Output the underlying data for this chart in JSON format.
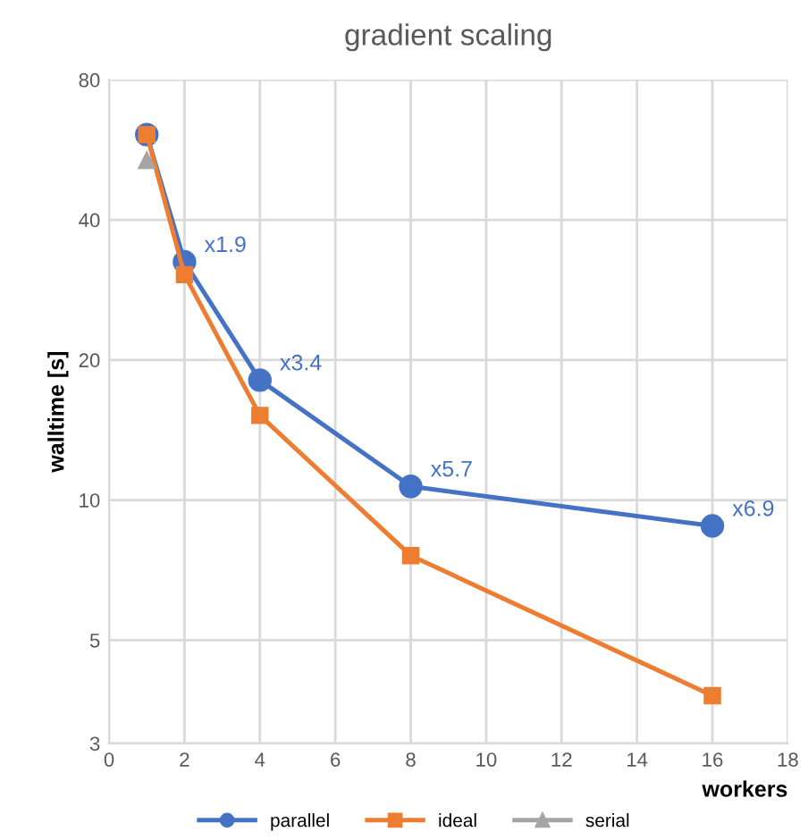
{
  "chart_data": {
    "type": "line",
    "title": "gradient scaling",
    "xlabel": "workers",
    "ylabel": "walltime [s]",
    "log": "y",
    "xlim": [
      0,
      18
    ],
    "xticks": [
      0,
      2,
      4,
      6,
      8,
      10,
      12,
      14,
      16,
      18
    ],
    "ylim": [
      3,
      80
    ],
    "yticks": [
      3,
      5,
      10,
      20,
      40,
      80
    ],
    "grid": true,
    "legend": "bottom",
    "line_style": "solid",
    "series": [
      {
        "name": "parallel",
        "color": "#4472c4",
        "marker": "circle",
        "x": [
          1,
          2,
          4,
          8,
          16
        ],
        "values": [
          61,
          32.5,
          18.1,
          10.7,
          8.8
        ]
      },
      {
        "name": "ideal",
        "color": "#ed7d31",
        "marker": "square",
        "x": [
          1,
          2,
          4,
          8,
          16
        ],
        "values": [
          61,
          30.5,
          15.2,
          7.6,
          3.8
        ]
      },
      {
        "name": "serial",
        "color": "#a5a5a5",
        "marker": "triangle",
        "x": [
          1
        ],
        "values": [
          53.7
        ]
      }
    ],
    "annotations": [
      {
        "text": "x1.9",
        "x": 2,
        "y": 32.5
      },
      {
        "text": "x3.4",
        "x": 4,
        "y": 18.1
      },
      {
        "text": "x5.7",
        "x": 8,
        "y": 10.7
      },
      {
        "text": "x6.9",
        "x": 16,
        "y": 8.8
      }
    ]
  }
}
